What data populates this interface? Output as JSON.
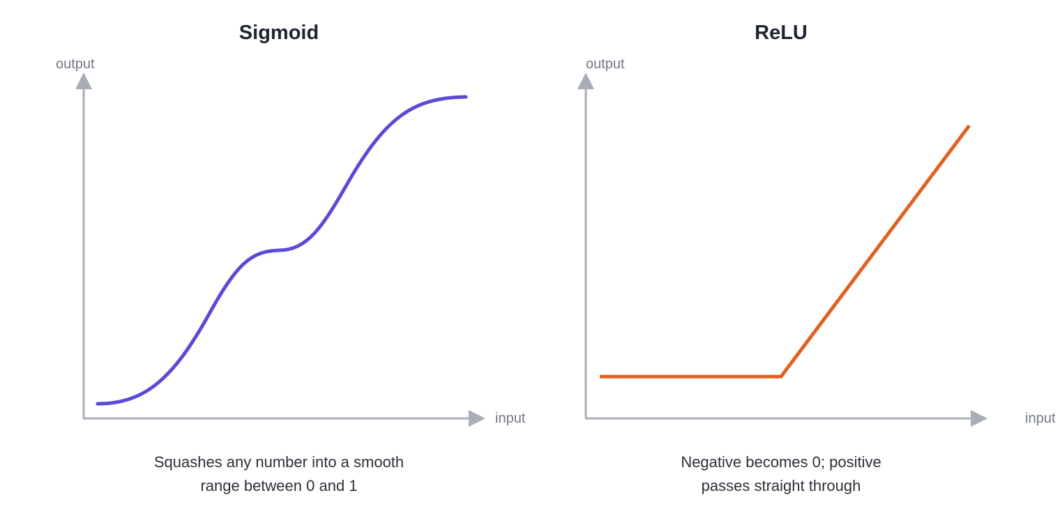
{
  "panels": [
    {
      "title": "Sigmoid",
      "y_label": "output",
      "x_label": "input",
      "caption_line1": "Squashes any number into a smooth",
      "caption_line2": "range between 0 and 1",
      "curve_color": "#5b4ad6",
      "curve_icon": "s-curve"
    },
    {
      "title": "ReLU",
      "y_label": "output",
      "x_label": "input",
      "caption_line1": "Negative becomes 0; positive",
      "caption_line2": "passes straight through",
      "curve_color": "#e0601f",
      "curve_icon": "hinge-line"
    }
  ],
  "axis_color": "#a9adb7"
}
